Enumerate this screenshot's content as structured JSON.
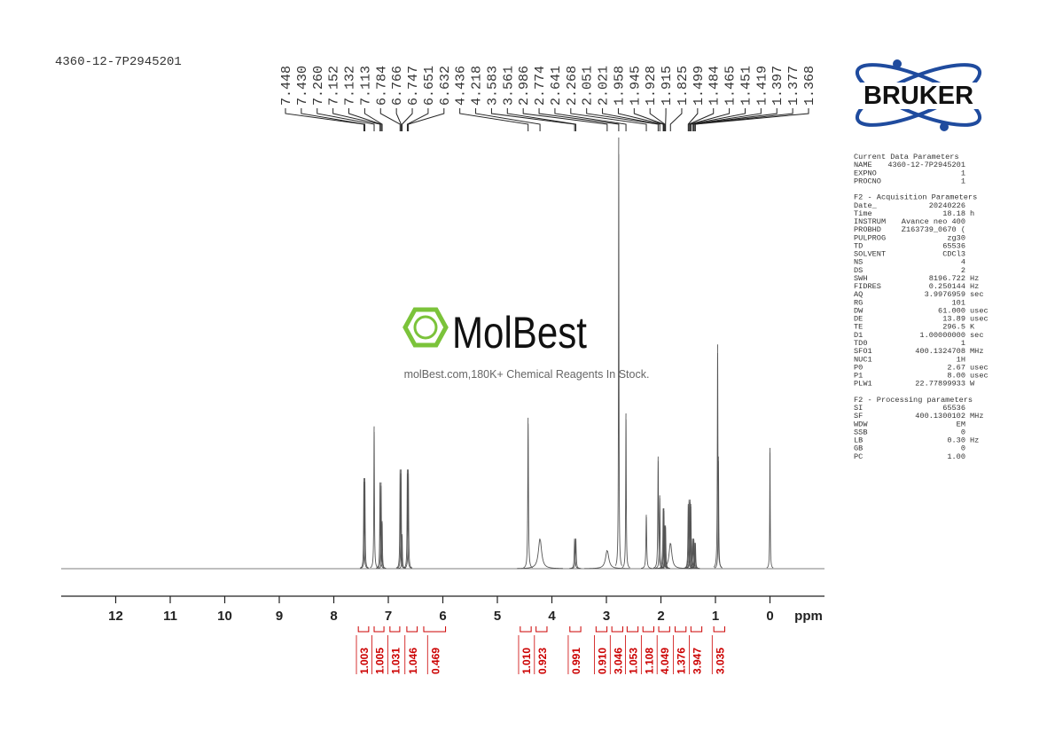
{
  "sample_id": "4360-12-7P2945201",
  "logo_text": "BRUKER",
  "watermark": {
    "name": "MolBest",
    "tagline": "molBest.com,180K+ Chemical Reagents In Stock."
  },
  "chart_data": {
    "type": "nmr",
    "xlabel": "ppm",
    "xlim": [
      13,
      -1
    ],
    "xticks": [
      12,
      11,
      10,
      9,
      8,
      7,
      6,
      5,
      4,
      3,
      2,
      1,
      0
    ],
    "ylim": [
      0,
      100
    ],
    "color": "#555555",
    "integral_color": "#cc0000",
    "peaks": [
      {
        "x": 7.448,
        "height": 21,
        "width": 0.006
      },
      {
        "x": 7.43,
        "height": 21,
        "width": 0.006
      },
      {
        "x": 7.26,
        "height": 33,
        "width": 0.006
      },
      {
        "x": 7.152,
        "height": 20,
        "width": 0.006
      },
      {
        "x": 7.132,
        "height": 20,
        "width": 0.006
      },
      {
        "x": 7.113,
        "height": 11,
        "width": 0.006
      },
      {
        "x": 6.784,
        "height": 23,
        "width": 0.006
      },
      {
        "x": 6.766,
        "height": 23,
        "width": 0.006
      },
      {
        "x": 6.747,
        "height": 8,
        "width": 0.006
      },
      {
        "x": 6.651,
        "height": 23,
        "width": 0.006
      },
      {
        "x": 6.632,
        "height": 23,
        "width": 0.006
      },
      {
        "x": 4.436,
        "height": 35,
        "width": 0.007
      },
      {
        "x": 4.218,
        "height": 7,
        "width": 0.035
      },
      {
        "x": 3.583,
        "height": 7,
        "width": 0.008
      },
      {
        "x": 3.561,
        "height": 7,
        "width": 0.008
      },
      {
        "x": 2.986,
        "height": 4.3,
        "width": 0.035
      },
      {
        "x": 2.774,
        "height": 100,
        "width": 0.005
      },
      {
        "x": 2.641,
        "height": 36,
        "width": 0.006
      },
      {
        "x": 2.268,
        "height": 12.5,
        "width": 0.008
      },
      {
        "x": 2.051,
        "height": 26,
        "width": 0.007
      },
      {
        "x": 2.021,
        "height": 17,
        "width": 0.007
      },
      {
        "x": 1.958,
        "height": 14,
        "width": 0.007
      },
      {
        "x": 1.945,
        "height": 14,
        "width": 0.007
      },
      {
        "x": 1.928,
        "height": 10,
        "width": 0.007
      },
      {
        "x": 1.915,
        "height": 10,
        "width": 0.007
      },
      {
        "x": 1.825,
        "height": 6,
        "width": 0.03
      },
      {
        "x": 1.499,
        "height": 15,
        "width": 0.007
      },
      {
        "x": 1.484,
        "height": 16,
        "width": 0.007
      },
      {
        "x": 1.465,
        "height": 16,
        "width": 0.007
      },
      {
        "x": 1.451,
        "height": 15,
        "width": 0.007
      },
      {
        "x": 1.419,
        "height": 7,
        "width": 0.007
      },
      {
        "x": 1.397,
        "height": 7,
        "width": 0.007
      },
      {
        "x": 1.377,
        "height": 6,
        "width": 0.007
      },
      {
        "x": 1.368,
        "height": 6,
        "width": 0.007
      },
      {
        "x": 0.96,
        "height": 52,
        "width": 0.006
      },
      {
        "x": 0.945,
        "height": 26,
        "width": 0.006
      },
      {
        "x": 0,
        "height": 28,
        "width": 0.005
      }
    ],
    "peak_labels": [
      7.448,
      {
        "value": 7.43,
        "label": "7.430"
      },
      {
        "value": 7.26,
        "label": "7.260"
      },
      7.152,
      7.132,
      7.113,
      6.784,
      6.766,
      6.747,
      6.651,
      6.632,
      4.436,
      4.218,
      3.583,
      3.561,
      2.986,
      2.774,
      2.641,
      2.268,
      2.051,
      2.021,
      1.958,
      1.945,
      1.928,
      1.915,
      1.825,
      1.499,
      1.484,
      1.465,
      1.451,
      1.419,
      1.397,
      1.377,
      1.368
    ],
    "integrals": [
      {
        "value": 1.003,
        "range": [
          7.55,
          7.36
        ]
      },
      {
        "value": 1.005,
        "range": [
          7.26,
          7.08
        ]
      },
      {
        "value": 1.031,
        "range": [
          6.97,
          6.79
        ]
      },
      {
        "value": 1.046,
        "range": [
          6.66,
          6.47
        ]
      },
      {
        "value": 0.469,
        "range": [
          6.35,
          5.95
        ]
      },
      {
        "value": 1.01,
        "label": "1.010",
        "range": [
          4.58,
          4.38
        ]
      },
      {
        "value": 0.923,
        "range": [
          4.29,
          4.09
        ]
      },
      {
        "value": 0.991,
        "range": [
          3.67,
          3.47
        ]
      },
      {
        "value": 0.91,
        "label": "0.910",
        "range": [
          3.19,
          2.99
        ]
      },
      {
        "value": 3.046,
        "range": [
          2.9,
          2.7
        ]
      },
      {
        "value": 1.053,
        "range": [
          2.62,
          2.42
        ]
      },
      {
        "value": 1.108,
        "range": [
          2.33,
          2.13
        ]
      },
      {
        "value": 4.049,
        "range": [
          2.04,
          1.84
        ]
      },
      {
        "value": 1.376,
        "range": [
          1.74,
          1.54
        ]
      },
      {
        "value": 3.947,
        "range": [
          1.45,
          1.25
        ]
      },
      {
        "value": 3.035,
        "range": [
          1.03,
          0.83
        ]
      }
    ]
  },
  "parameters": [
    {
      "title": "Current Data Parameters",
      "rows": [
        [
          "NAME",
          "4360-12-7P2945201"
        ],
        [
          "EXPNO",
          "1"
        ],
        [
          "PROCNO",
          "1"
        ]
      ]
    },
    {
      "title": "F2 - Acquisition Parameters",
      "rows": [
        [
          "Date_",
          "20240226"
        ],
        [
          "Time",
          "18.18",
          "h"
        ],
        [
          "INSTRUM",
          "Avance neo 400"
        ],
        [
          "PROBHD",
          "Z163739_0670 ("
        ],
        [
          "PULPROG",
          "zg30"
        ],
        [
          "TD",
          "65536"
        ],
        [
          "SOLVENT",
          "CDCl3"
        ],
        [
          "NS",
          "4"
        ],
        [
          "DS",
          "2"
        ],
        [
          "SWH",
          "8196.722",
          "Hz"
        ],
        [
          "FIDRES",
          "0.250144",
          "Hz"
        ],
        [
          "AQ",
          "3.9976959",
          "sec"
        ],
        [
          "RG",
          "101"
        ],
        [
          "DW",
          "61.000",
          "usec"
        ],
        [
          "DE",
          "13.89",
          "usec"
        ],
        [
          "TE",
          "296.5",
          "K"
        ],
        [
          "D1",
          "1.00000000",
          "sec"
        ],
        [
          "TD0",
          "1"
        ],
        [
          "SFO1",
          "400.1324708",
          "MHz"
        ],
        [
          "NUC1",
          "1H"
        ],
        [
          "P0",
          "2.67",
          "usec"
        ],
        [
          "P1",
          "8.00",
          "usec"
        ],
        [
          "PLW1",
          "22.77899933",
          "W"
        ]
      ]
    },
    {
      "title": "F2 - Processing parameters",
      "rows": [
        [
          "SI",
          "65536"
        ],
        [
          "SF",
          "400.1300102",
          "MHz"
        ],
        [
          "WDW",
          "EM"
        ],
        [
          "SSB",
          "0"
        ],
        [
          "LB",
          "0.30",
          "Hz"
        ],
        [
          "GB",
          "0"
        ],
        [
          "PC",
          "1.00"
        ]
      ]
    }
  ]
}
